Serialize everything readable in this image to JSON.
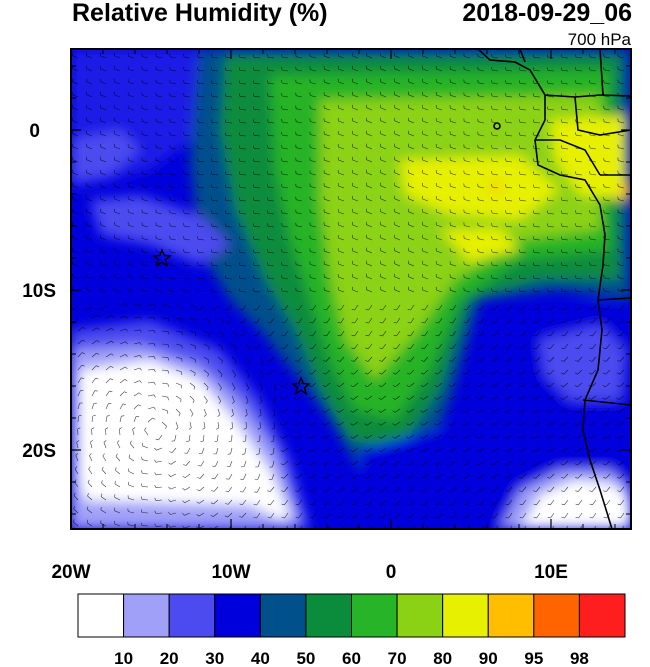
{
  "title": "Relative Humidity (%)",
  "datetime": "2018-09-29_06",
  "level": "700 hPa",
  "axes": {
    "x_ticks": [
      "20W",
      "10W",
      "0",
      "10E"
    ],
    "y_ticks": [
      "0",
      "10S",
      "20S"
    ]
  },
  "colorbar": {
    "labels": [
      "10",
      "20",
      "30",
      "40",
      "50",
      "60",
      "70",
      "80",
      "90",
      "95",
      "98"
    ],
    "colors": [
      "#ffffff",
      "#a0a0f8",
      "#4b4bf0",
      "#0000dc",
      "#00508c",
      "#0a8c3c",
      "#28b428",
      "#8cd214",
      "#e6f000",
      "#ffbe00",
      "#ff6400",
      "#ff1e1e"
    ]
  },
  "markers": [
    "star-marker",
    "star-marker"
  ],
  "colors": {
    "land_outline": "#000000",
    "background": "#ffffff"
  }
}
